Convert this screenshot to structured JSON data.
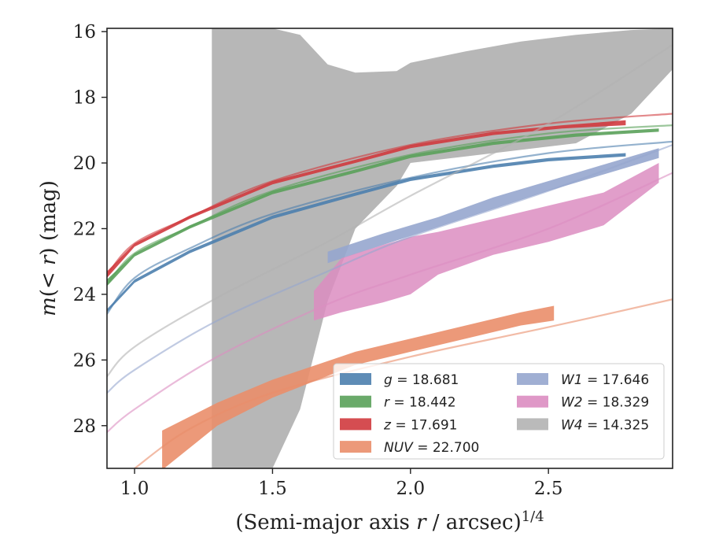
{
  "chart_data": {
    "type": "area",
    "xlabel": "(Semi-major axis r / arcsec)^{1/4}",
    "ylabel": "m(< r) (mag)",
    "xlim": [
      0.9,
      2.95
    ],
    "ylim": [
      29.3,
      15.9
    ],
    "y_inverted": true,
    "x_ticks": [
      1.0,
      1.5,
      2.0,
      2.5
    ],
    "x_tick_labels": [
      "1.0",
      "1.5",
      "2.0",
      "2.5"
    ],
    "y_ticks": [
      16,
      18,
      20,
      22,
      24,
      26,
      28
    ],
    "y_tick_labels": [
      "16",
      "18",
      "20",
      "22",
      "24",
      "26",
      "28"
    ],
    "grid": false,
    "legend_position": "lower-right",
    "series": [
      {
        "name": "g = 18.681",
        "legend_var": "g",
        "legend_value": "18.681",
        "color": "#4C7FAE",
        "model": [
          [
            0.9,
            24.6
          ],
          [
            1.0,
            23.5
          ],
          [
            1.2,
            22.6
          ],
          [
            1.5,
            21.55
          ],
          [
            2.0,
            20.45
          ],
          [
            2.5,
            19.7
          ],
          [
            2.95,
            19.35
          ]
        ],
        "band_x": [
          0.9,
          1.0,
          1.2,
          1.5,
          1.8,
          2.0,
          2.3,
          2.5,
          2.78
        ],
        "band_upper": [
          24.45,
          23.55,
          22.65,
          21.6,
          20.9,
          20.45,
          20.05,
          19.85,
          19.7
        ],
        "band_lower": [
          24.55,
          23.65,
          22.75,
          21.7,
          21.0,
          20.55,
          20.15,
          19.95,
          19.8
        ]
      },
      {
        "name": "r = 18.442",
        "legend_var": "r",
        "legend_value": "18.442",
        "color": "#5AA15A",
        "model": [
          [
            0.9,
            23.7
          ],
          [
            1.0,
            22.75
          ],
          [
            1.2,
            21.95
          ],
          [
            1.5,
            20.85
          ],
          [
            2.0,
            19.75
          ],
          [
            2.5,
            19.1
          ],
          [
            2.95,
            18.85
          ]
        ],
        "band_x": [
          0.9,
          1.0,
          1.2,
          1.5,
          1.8,
          2.0,
          2.3,
          2.6,
          2.9
        ],
        "band_upper": [
          23.55,
          22.75,
          21.9,
          20.85,
          20.2,
          19.75,
          19.35,
          19.1,
          18.95
        ],
        "band_lower": [
          23.75,
          22.85,
          22.0,
          20.95,
          20.3,
          19.85,
          19.45,
          19.2,
          19.05
        ]
      },
      {
        "name": "z = 17.691",
        "legend_var": "z",
        "legend_value": "17.691",
        "color": "#D03A3E",
        "model": [
          [
            0.9,
            23.4
          ],
          [
            1.0,
            22.45
          ],
          [
            1.2,
            21.65
          ],
          [
            1.5,
            20.55
          ],
          [
            2.0,
            19.45
          ],
          [
            2.5,
            18.8
          ],
          [
            2.95,
            18.5
          ]
        ],
        "band_x": [
          0.9,
          1.0,
          1.2,
          1.5,
          1.8,
          2.0,
          2.3,
          2.55,
          2.78
        ],
        "band_upper": [
          23.3,
          22.45,
          21.6,
          20.55,
          19.9,
          19.45,
          19.05,
          18.85,
          18.7
        ],
        "band_lower": [
          23.5,
          22.55,
          21.7,
          20.65,
          20.0,
          19.55,
          19.15,
          18.95,
          18.85
        ]
      },
      {
        "name": "NUV = 22.700",
        "legend_var": "NUV",
        "legend_value": "22.700",
        "color": "#EA8E6A",
        "model": [
          [
            1.0,
            29.3
          ],
          [
            1.2,
            28.1
          ],
          [
            1.5,
            27.0
          ],
          [
            2.0,
            25.9
          ],
          [
            2.5,
            25.0
          ],
          [
            2.95,
            24.15
          ]
        ],
        "band_x": [
          1.1,
          1.3,
          1.5,
          1.8,
          2.0,
          2.2,
          2.4,
          2.52
        ],
        "band_upper": [
          28.15,
          27.3,
          26.6,
          25.75,
          25.35,
          24.95,
          24.55,
          24.35
        ],
        "band_lower": [
          29.35,
          28.0,
          27.15,
          26.15,
          25.75,
          25.35,
          24.95,
          24.8
        ]
      },
      {
        "name": "W1 = 17.646",
        "legend_var": "W1",
        "legend_value": "17.646",
        "color": "#96A6CE",
        "model": [
          [
            0.9,
            27.0
          ],
          [
            1.0,
            26.3
          ],
          [
            1.3,
            24.8
          ],
          [
            1.7,
            23.3
          ],
          [
            2.0,
            22.25
          ],
          [
            2.5,
            20.85
          ],
          [
            2.95,
            19.45
          ]
        ],
        "band_x": [
          1.7,
          1.9,
          2.1,
          2.3,
          2.5,
          2.7,
          2.9
        ],
        "band_upper": [
          22.7,
          22.15,
          21.65,
          21.05,
          20.55,
          20.05,
          19.55
        ],
        "band_lower": [
          23.05,
          22.5,
          21.95,
          21.4,
          20.85,
          20.35,
          19.85
        ]
      },
      {
        "name": "W2 = 18.329",
        "legend_var": "W2",
        "legend_value": "18.329",
        "color": "#DC8DC1",
        "model": [
          [
            0.9,
            28.2
          ],
          [
            1.0,
            27.5
          ],
          [
            1.3,
            25.9
          ],
          [
            1.7,
            24.3
          ],
          [
            2.0,
            23.4
          ],
          [
            2.5,
            22.0
          ],
          [
            2.95,
            20.3
          ]
        ],
        "band_x": [
          1.65,
          1.75,
          1.9,
          2.0,
          2.1,
          2.3,
          2.5,
          2.7,
          2.9
        ],
        "band_upper": [
          23.9,
          22.9,
          22.5,
          22.25,
          22.1,
          21.7,
          21.3,
          20.9,
          20.0
        ],
        "band_lower": [
          24.8,
          24.55,
          24.25,
          24.0,
          23.4,
          22.8,
          22.4,
          21.9,
          20.6
        ]
      },
      {
        "name": "W4 = 14.325",
        "legend_var": "W4",
        "legend_value": "14.325",
        "color": "#B3B3B3",
        "model": [
          [
            0.9,
            26.5
          ],
          [
            1.0,
            25.6
          ],
          [
            1.3,
            24.1
          ],
          [
            1.7,
            22.4
          ],
          [
            2.0,
            21.0
          ],
          [
            2.5,
            18.8
          ],
          [
            2.95,
            16.4
          ]
        ],
        "band_x": [
          1.28,
          1.5,
          1.6,
          1.7,
          1.8,
          1.95,
          2.0,
          2.2,
          2.4,
          2.6,
          2.8,
          2.95
        ],
        "band_upper": [
          15.9,
          15.9,
          16.1,
          17.0,
          17.25,
          17.2,
          16.95,
          16.6,
          16.3,
          16.1,
          15.95,
          15.9
        ],
        "band_lower": [
          29.3,
          29.3,
          27.5,
          24.2,
          22.0,
          20.7,
          20.0,
          19.8,
          19.6,
          19.4,
          18.5,
          17.15
        ]
      }
    ]
  }
}
